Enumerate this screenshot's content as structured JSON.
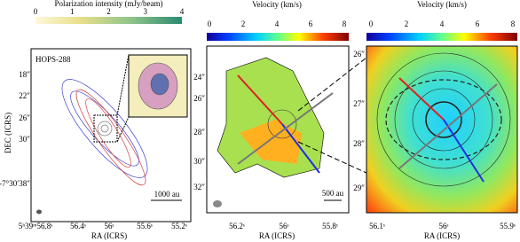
{
  "panels": [
    {
      "colorbar": {
        "label": "Polarization intensity (mJy/beam)",
        "ticks": [
          0,
          1,
          2,
          3,
          4
        ]
      },
      "annotation": "HOPS-288",
      "scalebar": "1000 au",
      "ylabel": "DEC (ICRS)",
      "xlabel": "RA (ICRS)",
      "yticks": [
        "18″",
        "22″",
        "26″",
        "30″",
        "-7°30′38″"
      ],
      "xticks": [
        "5ʰ39ᵐ56.8ˢ",
        "56.4ˢ",
        "56ˢ",
        "55.6ˢ",
        "55.2ˢ"
      ]
    },
    {
      "colorbar": {
        "label": "Velocity (km/s)",
        "ticks": [
          0,
          2,
          4,
          6,
          8
        ]
      },
      "scalebar": "500 au",
      "xlabel": "RA (ICRS)",
      "yticks": [
        "24″",
        "26″",
        "28″",
        "30″",
        "32″"
      ],
      "xticks": [
        "56.2ˢ",
        "56ˢ",
        "55.8ˢ"
      ]
    },
    {
      "colorbar": {
        "label": "Velocity (km/s)",
        "ticks": [
          0,
          2,
          4,
          6,
          8
        ]
      },
      "xlabel": "RA (ICRS)",
      "yticks": [
        "26″",
        "27″",
        "28″",
        "29″"
      ],
      "xticks": [
        "56.1ˢ",
        "56ˢ",
        "55.9ˢ"
      ]
    }
  ]
}
